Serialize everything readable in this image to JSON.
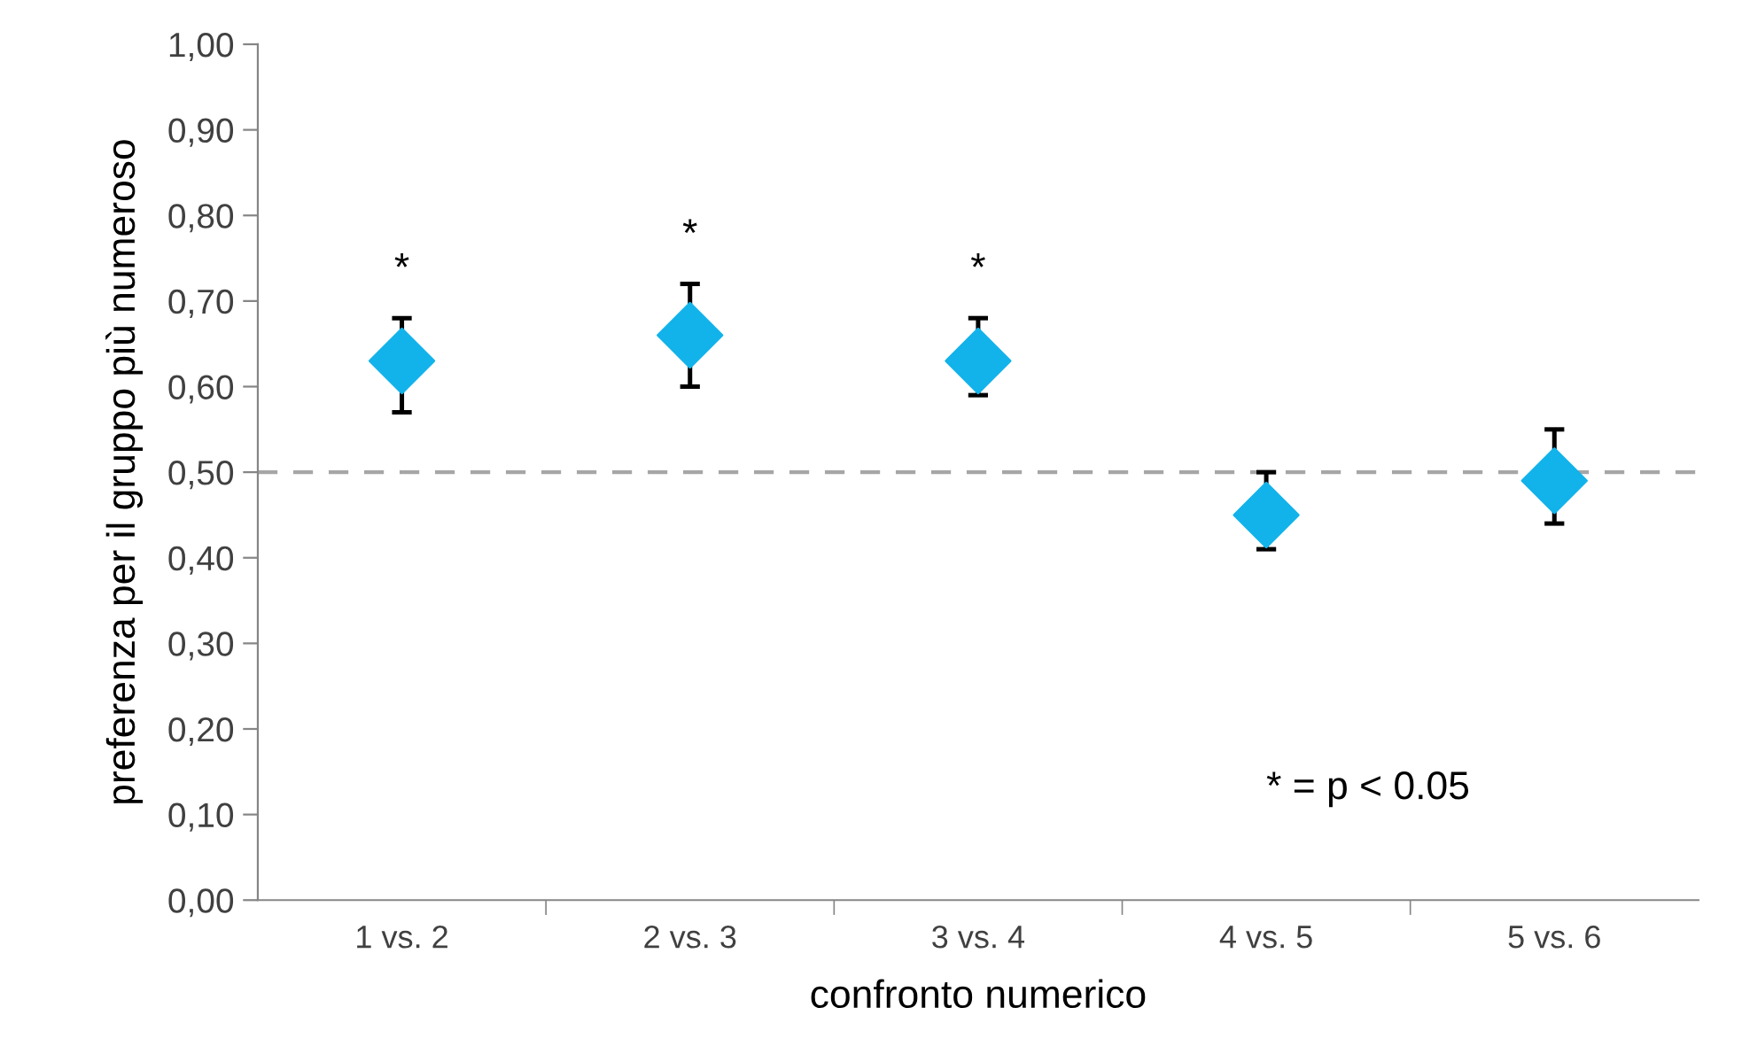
{
  "chart_data": {
    "type": "scatter",
    "xlabel": "confronto numerico",
    "ylabel": "preferenza per il gruppo più numeroso",
    "categories": [
      "1 vs. 2",
      "2 vs. 3",
      "3 vs. 4",
      "4 vs. 5",
      "5 vs. 6"
    ],
    "series": [
      {
        "color": "#12b3ea",
        "values": [
          0.63,
          0.66,
          0.63,
          0.45,
          0.49
        ],
        "errors": [
          [
            0.57,
            0.68
          ],
          [
            0.6,
            0.72
          ],
          [
            0.59,
            0.68
          ],
          [
            0.41,
            0.5
          ],
          [
            0.44,
            0.55
          ]
        ]
      }
    ],
    "marker": "diamond",
    "grid": false,
    "legend": false,
    "ylim": [
      0,
      1
    ],
    "yticks": [
      {
        "value": 0,
        "label": "0,00"
      },
      {
        "value": 0.1,
        "label": "0,10"
      },
      {
        "value": 0.2,
        "label": "0,20"
      },
      {
        "value": 0.3,
        "label": "0,30"
      },
      {
        "value": 0.4,
        "label": "0,40"
      },
      {
        "value": 0.5,
        "label": "0,50"
      },
      {
        "value": 0.6,
        "label": "0,60"
      },
      {
        "value": 0.7,
        "label": "0,70"
      },
      {
        "value": 0.8,
        "label": "0,80"
      },
      {
        "value": 0.9,
        "label": "0,90"
      },
      {
        "value": 1,
        "label": "1,00"
      }
    ],
    "ref_lines": [
      {
        "axis": "y",
        "value": 0.5,
        "color": "#a6a6a6",
        "line_style": "dashed"
      }
    ],
    "annotations": [
      "*",
      "*",
      "*",
      "* = p < 0.05"
    ]
  }
}
